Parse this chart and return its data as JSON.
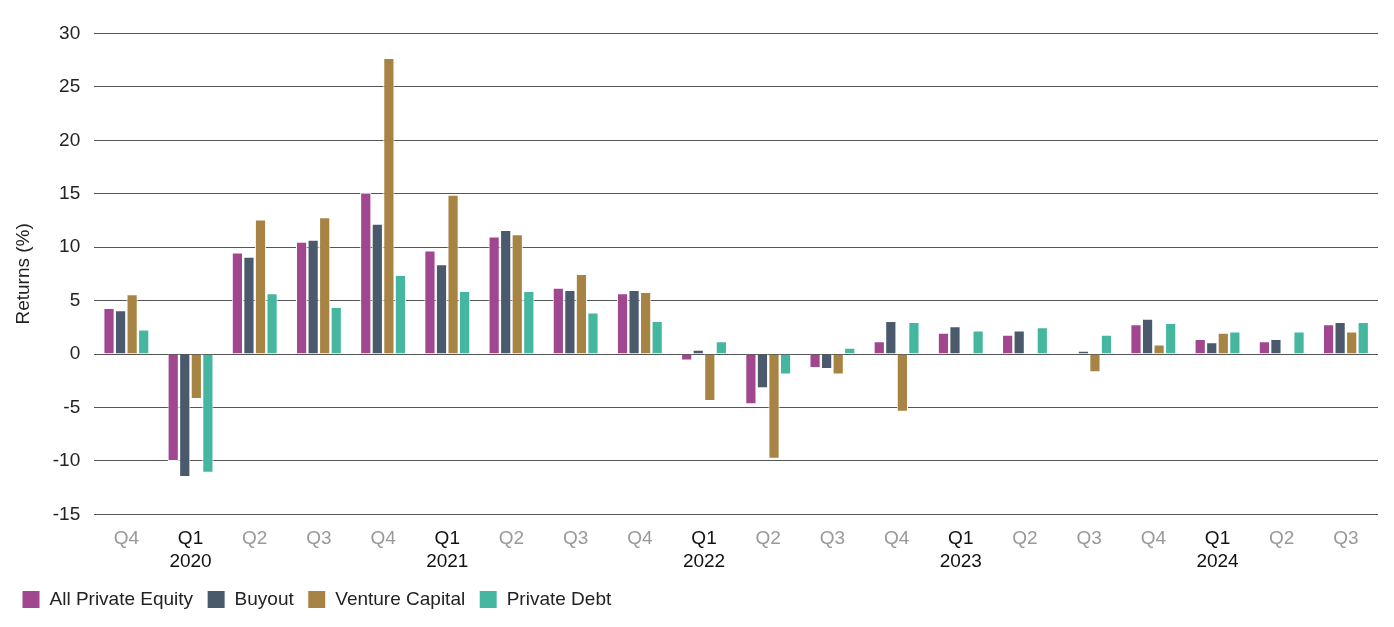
{
  "chart_data": {
    "type": "bar",
    "ylabel": "Returns (%)",
    "categories": [
      "Q4",
      "Q1\n2020",
      "Q2",
      "Q3",
      "Q4",
      "Q1\n2021",
      "Q2",
      "Q3",
      "Q4",
      "Q1\n2022",
      "Q2",
      "Q3",
      "Q4",
      "Q1\n2023",
      "Q2",
      "Q3",
      "Q4",
      "Q1\n2024",
      "Q2",
      "Q3"
    ],
    "series": [
      {
        "name": "All Private Equity",
        "color": "#a0478f",
        "values": [
          4.3,
          -10.0,
          9.5,
          10.5,
          15.1,
          9.7,
          11.0,
          6.2,
          5.7,
          -0.6,
          -4.7,
          -1.3,
          1.2,
          2.0,
          1.8,
          null,
          2.8,
          1.4,
          1.2,
          2.8
        ]
      },
      {
        "name": "Buyout",
        "color": "#4a596b",
        "values": [
          4.1,
          -11.5,
          9.1,
          10.7,
          12.2,
          8.4,
          11.6,
          6.0,
          6.0,
          0.4,
          -3.2,
          -1.4,
          3.1,
          2.6,
          2.2,
          0.3,
          3.3,
          1.1,
          1.4,
          3.0
        ]
      },
      {
        "name": "Venture Capital",
        "color": "#a88444",
        "values": [
          5.6,
          -4.2,
          12.6,
          12.8,
          27.7,
          14.9,
          11.2,
          7.5,
          5.8,
          -4.4,
          -9.8,
          -1.9,
          -5.4,
          null,
          null,
          -1.7,
          0.9,
          2.0,
          null,
          2.1
        ]
      },
      {
        "name": "Private Debt",
        "color": "#45b69f",
        "values": [
          2.3,
          -11.1,
          5.7,
          4.4,
          7.4,
          5.9,
          5.9,
          3.9,
          3.1,
          1.2,
          -1.9,
          0.6,
          3.0,
          2.2,
          2.5,
          1.8,
          2.9,
          2.1,
          2.1,
          3.0
        ]
      }
    ],
    "ylim": [
      -15,
      30
    ],
    "yticks": [
      -15,
      -10,
      -5,
      0,
      5,
      10,
      15,
      20,
      25,
      30
    ],
    "grid": "y",
    "legend": "bottom left"
  }
}
